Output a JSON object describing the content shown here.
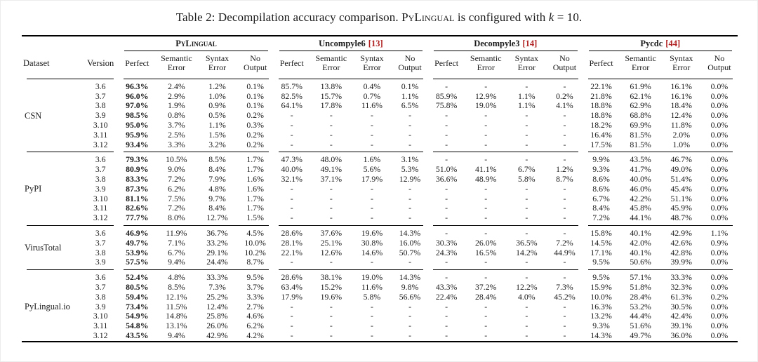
{
  "caption": {
    "prefix": "Table 2: Decompilation accuracy comparison. ",
    "brand": "PyLingual",
    "middle": " is configured with ",
    "var": "k",
    "suffix": " = 10."
  },
  "colors": {
    "citation_red": "#b02020"
  },
  "table": {
    "corner_headers": [
      "Dataset",
      "Version"
    ],
    "groups": [
      {
        "label": "PyLingual",
        "cite": "",
        "smallcaps": true
      },
      {
        "label": "Uncompyle6",
        "cite": "[13]",
        "smallcaps": false
      },
      {
        "label": "Decompyle3",
        "cite": "[14]",
        "smallcaps": false
      },
      {
        "label": "Pycdc",
        "cite": "[44]",
        "smallcaps": false
      }
    ],
    "subcolumns": [
      "Perfect",
      "Semantic Error",
      "Syntax Error",
      "No Output"
    ],
    "datasets": [
      {
        "name": "CSN",
        "rows": [
          {
            "version": "3.6",
            "cells": [
              "96.3%",
              "2.4%",
              "1.2%",
              "0.1%",
              "85.7%",
              "13.8%",
              "0.4%",
              "0.1%",
              "-",
              "-",
              "-",
              "-",
              "22.1%",
              "61.9%",
              "16.1%",
              "0.0%"
            ]
          },
          {
            "version": "3.7",
            "cells": [
              "96.0%",
              "2.9%",
              "1.0%",
              "0.1%",
              "82.5%",
              "15.7%",
              "0.7%",
              "1.1%",
              "85.9%",
              "12.9%",
              "1.1%",
              "0.2%",
              "21.8%",
              "62.1%",
              "16.1%",
              "0.0%"
            ]
          },
          {
            "version": "3.8",
            "cells": [
              "97.0%",
              "1.9%",
              "0.9%",
              "0.1%",
              "64.1%",
              "17.8%",
              "11.6%",
              "6.5%",
              "75.8%",
              "19.0%",
              "1.1%",
              "4.1%",
              "18.8%",
              "62.9%",
              "18.4%",
              "0.0%"
            ]
          },
          {
            "version": "3.9",
            "cells": [
              "98.5%",
              "0.8%",
              "0.5%",
              "0.2%",
              "-",
              "-",
              "-",
              "-",
              "-",
              "-",
              "-",
              "-",
              "18.8%",
              "68.8%",
              "12.4%",
              "0.0%"
            ]
          },
          {
            "version": "3.10",
            "cells": [
              "95.0%",
              "3.7%",
              "1.1%",
              "0.3%",
              "-",
              "-",
              "-",
              "-",
              "-",
              "-",
              "-",
              "-",
              "18.2%",
              "69.9%",
              "11.8%",
              "0.0%"
            ]
          },
          {
            "version": "3.11",
            "cells": [
              "95.9%",
              "2.5%",
              "1.5%",
              "0.2%",
              "-",
              "-",
              "-",
              "-",
              "-",
              "-",
              "-",
              "-",
              "16.4%",
              "81.5%",
              "2.0%",
              "0.0%"
            ]
          },
          {
            "version": "3.12",
            "cells": [
              "93.4%",
              "3.3%",
              "3.2%",
              "0.2%",
              "-",
              "-",
              "-",
              "-",
              "-",
              "-",
              "-",
              "-",
              "17.5%",
              "81.5%",
              "1.0%",
              "0.0%"
            ]
          }
        ]
      },
      {
        "name": "PyPI",
        "rows": [
          {
            "version": "3.6",
            "cells": [
              "79.3%",
              "10.5%",
              "8.5%",
              "1.7%",
              "47.3%",
              "48.0%",
              "1.6%",
              "3.1%",
              "-",
              "-",
              "-",
              "-",
              "9.9%",
              "43.5%",
              "46.7%",
              "0.0%"
            ]
          },
          {
            "version": "3.7",
            "cells": [
              "80.9%",
              "9.0%",
              "8.4%",
              "1.7%",
              "40.0%",
              "49.1%",
              "5.6%",
              "5.3%",
              "51.0%",
              "41.1%",
              "6.7%",
              "1.2%",
              "9.3%",
              "41.7%",
              "49.0%",
              "0.0%"
            ]
          },
          {
            "version": "3.8",
            "cells": [
              "83.3%",
              "7.2%",
              "7.9%",
              "1.6%",
              "32.1%",
              "37.1%",
              "17.9%",
              "12.9%",
              "36.6%",
              "48.9%",
              "5.8%",
              "8.7%",
              "8.6%",
              "40.0%",
              "51.4%",
              "0.0%"
            ]
          },
          {
            "version": "3.9",
            "cells": [
              "87.3%",
              "6.2%",
              "4.8%",
              "1.6%",
              "-",
              "-",
              "-",
              "-",
              "-",
              "-",
              "-",
              "-",
              "8.6%",
              "46.0%",
              "45.4%",
              "0.0%"
            ]
          },
          {
            "version": "3.10",
            "cells": [
              "81.1%",
              "7.5%",
              "9.7%",
              "1.7%",
              "-",
              "-",
              "-",
              "-",
              "-",
              "-",
              "-",
              "-",
              "6.7%",
              "42.2%",
              "51.1%",
              "0.0%"
            ]
          },
          {
            "version": "3.11",
            "cells": [
              "82.6%",
              "7.2%",
              "8.4%",
              "1.7%",
              "-",
              "-",
              "-",
              "-",
              "-",
              "-",
              "-",
              "-",
              "8.4%",
              "45.8%",
              "45.9%",
              "0.0%"
            ]
          },
          {
            "version": "3.12",
            "cells": [
              "77.7%",
              "8.0%",
              "12.7%",
              "1.5%",
              "-",
              "-",
              "-",
              "-",
              "-",
              "-",
              "-",
              "-",
              "7.2%",
              "44.1%",
              "48.7%",
              "0.0%"
            ]
          }
        ]
      },
      {
        "name": "VirusTotal",
        "rows": [
          {
            "version": "3.6",
            "cells": [
              "46.9%",
              "11.9%",
              "36.7%",
              "4.5%",
              "28.6%",
              "37.6%",
              "19.6%",
              "14.3%",
              "-",
              "-",
              "-",
              "-",
              "15.8%",
              "40.1%",
              "42.9%",
              "1.1%"
            ]
          },
          {
            "version": "3.7",
            "cells": [
              "49.7%",
              "7.1%",
              "33.2%",
              "10.0%",
              "28.1%",
              "25.1%",
              "30.8%",
              "16.0%",
              "30.3%",
              "26.0%",
              "36.5%",
              "7.2%",
              "14.5%",
              "42.0%",
              "42.6%",
              "0.9%"
            ]
          },
          {
            "version": "3.8",
            "cells": [
              "53.9%",
              "6.7%",
              "29.1%",
              "10.2%",
              "22.1%",
              "12.6%",
              "14.6%",
              "50.7%",
              "24.3%",
              "16.5%",
              "14.2%",
              "44.9%",
              "17.1%",
              "40.1%",
              "42.8%",
              "0.0%"
            ]
          },
          {
            "version": "3.9",
            "cells": [
              "57.5%",
              "9.4%",
              "24.4%",
              "8.7%",
              "-",
              "-",
              "-",
              "-",
              "-",
              "-",
              "-",
              "-",
              "9.5%",
              "50.6%",
              "39.9%",
              "0.0%"
            ]
          }
        ]
      },
      {
        "name": "PyLingual.io",
        "rows": [
          {
            "version": "3.6",
            "cells": [
              "52.4%",
              "4.8%",
              "33.3%",
              "9.5%",
              "28.6%",
              "38.1%",
              "19.0%",
              "14.3%",
              "-",
              "-",
              "-",
              "-",
              "9.5%",
              "57.1%",
              "33.3%",
              "0.0%"
            ]
          },
          {
            "version": "3.7",
            "cells": [
              "80.5%",
              "8.5%",
              "7.3%",
              "3.7%",
              "63.4%",
              "15.2%",
              "11.6%",
              "9.8%",
              "43.3%",
              "37.2%",
              "12.2%",
              "7.3%",
              "15.9%",
              "51.8%",
              "32.3%",
              "0.0%"
            ]
          },
          {
            "version": "3.8",
            "cells": [
              "59.4%",
              "12.1%",
              "25.2%",
              "3.3%",
              "17.9%",
              "19.6%",
              "5.8%",
              "56.6%",
              "22.4%",
              "28.4%",
              "4.0%",
              "45.2%",
              "10.0%",
              "28.4%",
              "61.3%",
              "0.2%"
            ]
          },
          {
            "version": "3.9",
            "cells": [
              "73.4%",
              "11.5%",
              "12.4%",
              "2.7%",
              "-",
              "-",
              "-",
              "-",
              "-",
              "-",
              "-",
              "-",
              "16.3%",
              "53.2%",
              "30.5%",
              "0.0%"
            ]
          },
          {
            "version": "3.10",
            "cells": [
              "54.9%",
              "14.8%",
              "25.8%",
              "4.6%",
              "-",
              "-",
              "-",
              "-",
              "-",
              "-",
              "-",
              "-",
              "13.2%",
              "44.4%",
              "42.4%",
              "0.0%"
            ]
          },
          {
            "version": "3.11",
            "cells": [
              "54.8%",
              "13.1%",
              "26.0%",
              "6.2%",
              "-",
              "-",
              "-",
              "-",
              "-",
              "-",
              "-",
              "-",
              "9.3%",
              "51.6%",
              "39.1%",
              "0.0%"
            ]
          },
          {
            "version": "3.12",
            "cells": [
              "43.5%",
              "9.4%",
              "42.9%",
              "4.2%",
              "-",
              "-",
              "-",
              "-",
              "-",
              "-",
              "-",
              "-",
              "14.3%",
              "49.7%",
              "36.0%",
              "0.0%"
            ]
          }
        ]
      }
    ]
  }
}
